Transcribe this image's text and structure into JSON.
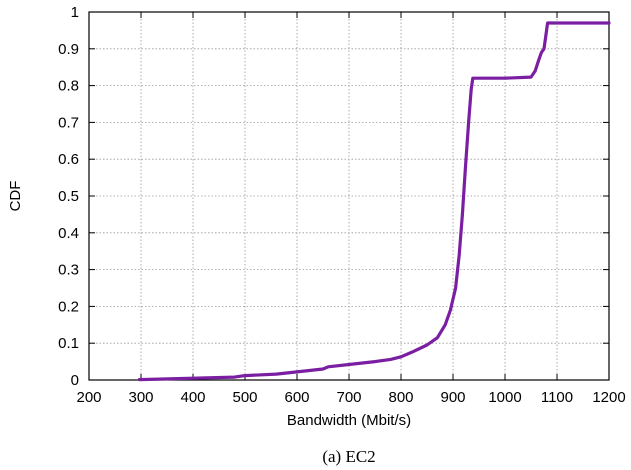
{
  "chart_data": {
    "type": "line",
    "title": "",
    "xlabel": "Bandwidth (Mbit/s)",
    "ylabel": "CDF",
    "caption": "(a) EC2",
    "xlim": [
      200,
      1200
    ],
    "ylim": [
      0,
      1
    ],
    "xticks": [
      200,
      300,
      400,
      500,
      600,
      700,
      800,
      900,
      1000,
      1100,
      1200
    ],
    "yticks": [
      0,
      0.1,
      0.2,
      0.3,
      0.4,
      0.5,
      0.6,
      0.7,
      0.8,
      0.9,
      1
    ],
    "grid": true,
    "legend": "none",
    "series": [
      {
        "color": "#7b1fa2",
        "x": [
          297,
          400,
          480,
          500,
          560,
          600,
          650,
          660,
          700,
          750,
          780,
          800,
          820,
          850,
          870,
          885,
          895,
          905,
          912,
          918,
          924,
          930,
          935,
          938,
          1000,
          1050,
          1058,
          1065,
          1070,
          1075,
          1082,
          1200
        ],
        "y": [
          0.001,
          0.005,
          0.008,
          0.012,
          0.016,
          0.022,
          0.03,
          0.036,
          0.042,
          0.05,
          0.056,
          0.063,
          0.075,
          0.095,
          0.115,
          0.15,
          0.19,
          0.25,
          0.34,
          0.45,
          0.58,
          0.7,
          0.79,
          0.82,
          0.82,
          0.823,
          0.84,
          0.87,
          0.89,
          0.9,
          0.97,
          0.97
        ]
      }
    ]
  }
}
